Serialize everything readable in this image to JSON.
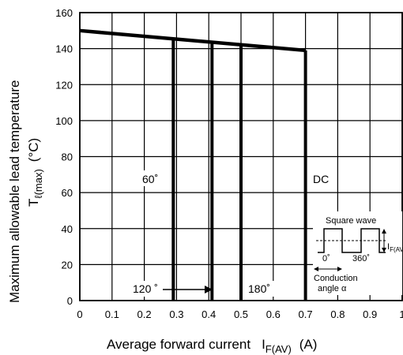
{
  "chart_data": {
    "type": "line",
    "xlabel_main": "Average forward current",
    "xlabel_symbol": "I",
    "xlabel_sub": "F(AV)",
    "xlabel_unit": "(A)",
    "ylabel_main": "Maximum allowable lead temperature",
    "ylabel_symbol": "T",
    "ylabel_sub": "ℓ(max)",
    "ylabel_unit": "(°C)",
    "xlim": [
      0,
      1
    ],
    "ylim": [
      0,
      160
    ],
    "x_ticks": [
      0,
      0.1,
      0.2,
      0.3,
      0.4,
      0.5,
      0.6,
      0.7,
      0.8,
      0.9,
      1
    ],
    "x_tick_labels": [
      "0",
      "0.1",
      "0.2",
      "0.3",
      "0.4",
      "0.5",
      "0.6",
      "0.7",
      "0.8",
      "0.9",
      "1"
    ],
    "y_ticks": [
      0,
      20,
      40,
      60,
      80,
      100,
      120,
      140,
      160
    ],
    "y_tick_labels": [
      "0",
      "20",
      "40",
      "60",
      "80",
      "100",
      "120",
      "140",
      "160"
    ],
    "grid": true,
    "curve": {
      "x": [
        0,
        0.7
      ],
      "y": [
        150,
        139
      ]
    },
    "drops": [
      {
        "name": "60°",
        "x": 0.29,
        "y": 146
      },
      {
        "name": "120°",
        "x": 0.41,
        "y": 144
      },
      {
        "name": "180°",
        "x": 0.5,
        "y": 142.5
      },
      {
        "name": "DC",
        "x": 0.7,
        "y": 139
      }
    ],
    "annotations": {
      "label_60": "60˚",
      "label_120": "120 ˚",
      "label_180": "180˚",
      "label_dc": "DC",
      "inset_title": "Square wave",
      "inset_0": "0˚",
      "inset_360": "360˚",
      "inset_current_main": "I",
      "inset_current_sub": "F(AV)",
      "inset_cond1": "Conduction",
      "inset_cond2": "angle α"
    }
  }
}
